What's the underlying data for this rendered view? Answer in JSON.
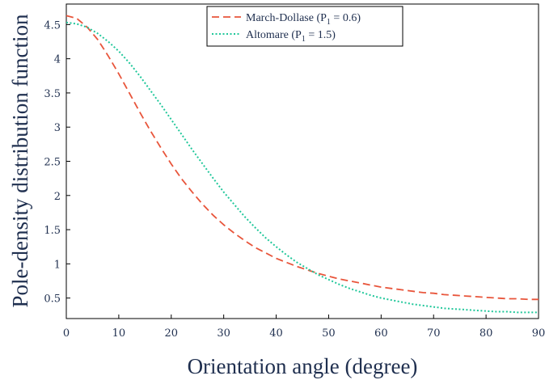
{
  "chart_data": {
    "type": "line",
    "xlabel": "Orientation angle (degree)",
    "ylabel": "Pole-density distribution function",
    "xlim": [
      0,
      90
    ],
    "ylim": [
      0.2,
      4.8
    ],
    "xticks": [
      0,
      10,
      20,
      30,
      40,
      50,
      60,
      70,
      80,
      90
    ],
    "xtick_labels": [
      "0",
      "10",
      "20",
      "30",
      "40",
      "50",
      "60",
      "70",
      "80",
      "90"
    ],
    "yticks": [
      0.5,
      1,
      1.5,
      2,
      2.5,
      3,
      3.5,
      4,
      4.5
    ],
    "ytick_labels": [
      "0.5",
      "1",
      "1.5",
      "2",
      "2.5",
      "3",
      "3.5",
      "4",
      "4.5"
    ],
    "grid": false,
    "legend_position": "top-center",
    "series": [
      {
        "name": "March-Dollase (P1 = 0.6)",
        "legend_label": "March-Dollase (P",
        "legend_sub": "1",
        "legend_tail": " = 0.6)",
        "color": "#e8553b",
        "dash": "dashed",
        "x": [
          0,
          2,
          4,
          6,
          8,
          10,
          12,
          14,
          16,
          18,
          20,
          22,
          24,
          26,
          28,
          30,
          32,
          34,
          36,
          38,
          40,
          42,
          44,
          46,
          48,
          50,
          52,
          54,
          56,
          58,
          60,
          62,
          64,
          66,
          68,
          70,
          72,
          74,
          76,
          78,
          80,
          82,
          84,
          86,
          88,
          90
        ],
        "y": [
          4.63,
          4.59,
          4.46,
          4.28,
          4.04,
          3.78,
          3.5,
          3.22,
          2.95,
          2.7,
          2.46,
          2.24,
          2.05,
          1.87,
          1.71,
          1.57,
          1.45,
          1.34,
          1.24,
          1.16,
          1.08,
          1.02,
          0.96,
          0.91,
          0.86,
          0.82,
          0.78,
          0.75,
          0.72,
          0.69,
          0.66,
          0.64,
          0.62,
          0.6,
          0.58,
          0.57,
          0.55,
          0.54,
          0.53,
          0.52,
          0.51,
          0.5,
          0.49,
          0.49,
          0.48,
          0.48
        ]
      },
      {
        "name": "Altomare (P1 = 1.5)",
        "legend_label": "Altomare (P",
        "legend_sub": "1",
        "legend_tail": " = 1.5)",
        "color": "#20c79a",
        "dash": "dotted",
        "x": [
          0,
          2,
          4,
          6,
          8,
          10,
          12,
          14,
          16,
          18,
          20,
          22,
          24,
          26,
          28,
          30,
          32,
          34,
          36,
          38,
          40,
          42,
          44,
          46,
          48,
          50,
          52,
          54,
          56,
          58,
          60,
          62,
          64,
          66,
          68,
          70,
          72,
          74,
          76,
          78,
          80,
          82,
          84,
          86,
          88,
          90
        ],
        "y": [
          4.53,
          4.51,
          4.46,
          4.37,
          4.25,
          4.11,
          3.94,
          3.75,
          3.54,
          3.33,
          3.11,
          2.89,
          2.67,
          2.46,
          2.25,
          2.05,
          1.87,
          1.69,
          1.53,
          1.38,
          1.25,
          1.13,
          1.02,
          0.93,
          0.84,
          0.77,
          0.7,
          0.64,
          0.59,
          0.54,
          0.5,
          0.47,
          0.44,
          0.41,
          0.39,
          0.37,
          0.35,
          0.34,
          0.33,
          0.32,
          0.31,
          0.3,
          0.3,
          0.29,
          0.29,
          0.29
        ]
      }
    ]
  }
}
